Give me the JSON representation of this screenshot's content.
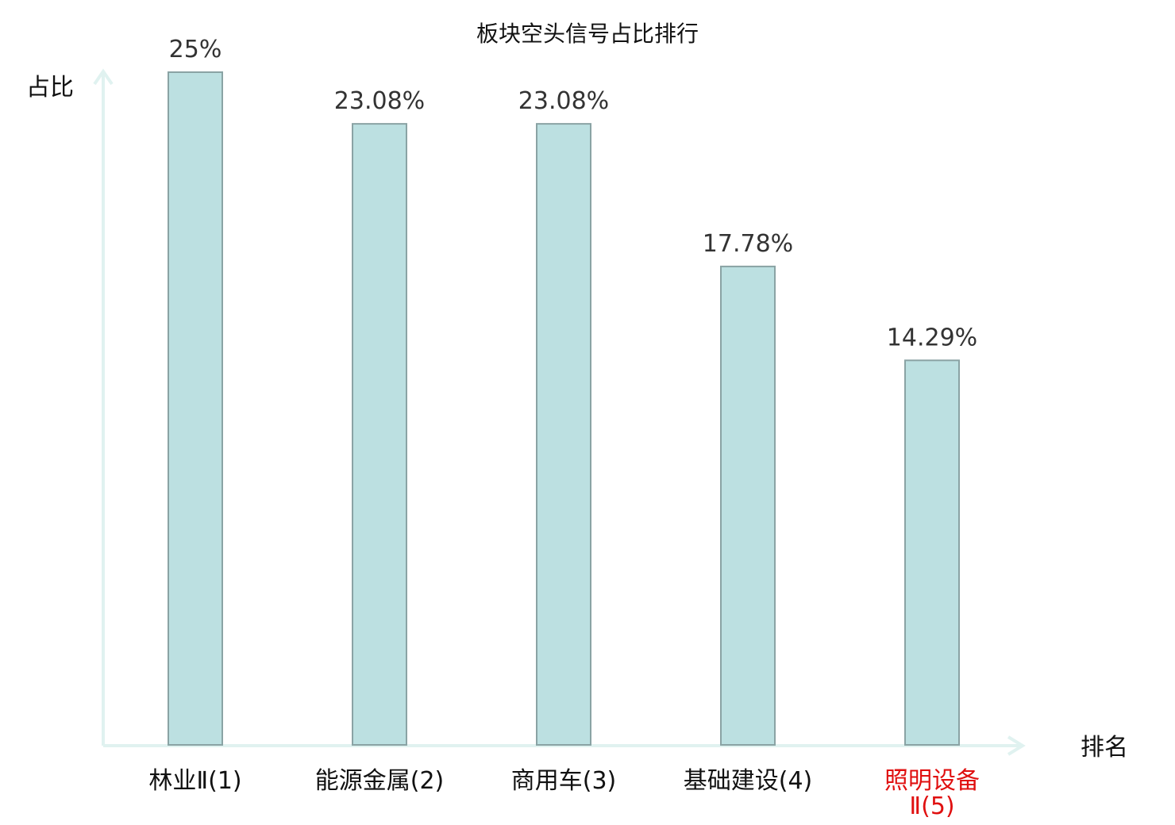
{
  "chart_data": {
    "type": "bar",
    "title": "板块空头信号占比排行",
    "xlabel": "排名",
    "ylabel": "占比",
    "categories": [
      [
        "林业Ⅱ(1)"
      ],
      [
        "能源金属(2)"
      ],
      [
        "商用车(3)"
      ],
      [
        "基础建设(4)"
      ],
      [
        "照明设备",
        "Ⅱ(5)"
      ]
    ],
    "category_colors": [
      "#111111",
      "#111111",
      "#111111",
      "#111111",
      "#e01010"
    ],
    "values": [
      25,
      23.08,
      23.08,
      17.78,
      14.29
    ],
    "value_labels": [
      "25%",
      "23.08%",
      "23.08%",
      "17.78%",
      "14.29%"
    ],
    "ylim": [
      0,
      25
    ],
    "grid": false,
    "legend": "none",
    "colors": {
      "bar_fill": "#bce0e1",
      "bar_stroke": "#8aa3a4",
      "axis": "#e0f2f0",
      "highlight_label": "#e01010"
    }
  }
}
